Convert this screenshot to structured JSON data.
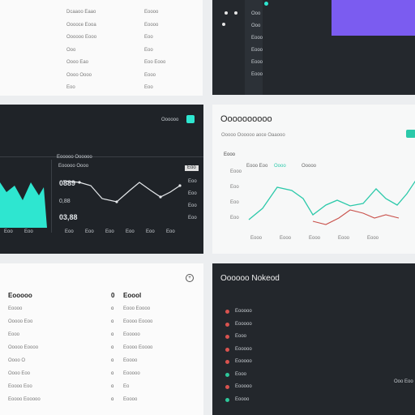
{
  "panel_tl": {
    "col1": [
      "Dcaaoo Eaao",
      "Ooooce Eooa",
      "Oooooo Eooo",
      "Ooo",
      "Oooo Eao",
      "Oooo Oooo",
      "Eoo"
    ],
    "col2": [
      "Eoooo",
      "Eoooo",
      "Eoo",
      "Eoo",
      "Eoo Eooo",
      "Eooo",
      "Eoo"
    ]
  },
  "panel_tr": {
    "menu": [
      "Ooo",
      "Ooo",
      "Eooo",
      "Eooo",
      "Eooo",
      "Eooo"
    ],
    "accent": "#7b5cf0"
  },
  "panel_ml": {
    "header_label": "Oooooo",
    "legend": "Eooooo Oooooo",
    "row_label": "Eooooo Oooo",
    "big_value_1": "0889",
    "big_value_2": "0,88",
    "big_value_3": "03,88",
    "badge": "Eoo",
    "x_ticks": [
      "Eoo",
      "Eoo",
      "Eoo",
      "Eoo",
      "Eoo",
      "Eoo"
    ],
    "y_ticks": [
      "Eoo",
      "Eoo",
      "Eoo",
      "Eoo"
    ],
    "teal": "#2ee6d0"
  },
  "panel_mr": {
    "title": "Oooooooooo",
    "subtitle": "Ooooo Oooooo aoce Oaaooo",
    "legend_label": "Eooo",
    "legend_items": [
      "Eooo Eoo",
      "Oooo",
      "Ooooo"
    ],
    "y_ticks": [
      "Eooo",
      "Eoo",
      "Eoo",
      "Eoo"
    ],
    "x_ticks": [
      "Eooo",
      "Eooo",
      "Eooo",
      "Eooo",
      "Eooo"
    ],
    "teal": "#2cc9aa",
    "red": "#c9504a"
  },
  "panel_bl": {
    "col1_header": "Eooooo",
    "col1_count": "0",
    "col1_items": [
      "Eoooo",
      "Ooooo Eoo",
      "Eooo",
      "Ooooo Eoooo",
      "Oooo O",
      "Oooo Eoo",
      "Eoooo Eoo",
      "Eoooo Eooooo"
    ],
    "col2_header": "Eoool",
    "col2_count": "0",
    "col2_items": [
      "Eooo Eoooo",
      "Eoooo Eoooo",
      "Eooooo",
      "Eoooo Eoooo",
      "Eoooo",
      "Eooooo",
      "Eo",
      "Eoooo"
    ]
  },
  "panel_br": {
    "title": "Oooooo Nokeod",
    "items": [
      "Eooooo",
      "Eooooo",
      "Eooo",
      "Eooooo",
      "Eooooo",
      "Eooo",
      "Eooooo",
      "Eoooo"
    ],
    "dot_colors": [
      "#d9534f",
      "#d9534f",
      "#d9534f",
      "#d9534f",
      "#d9534f",
      "#2ec79a",
      "#d9534f",
      "#2ec79a"
    ],
    "right_value": "Ooo Eoo"
  }
}
